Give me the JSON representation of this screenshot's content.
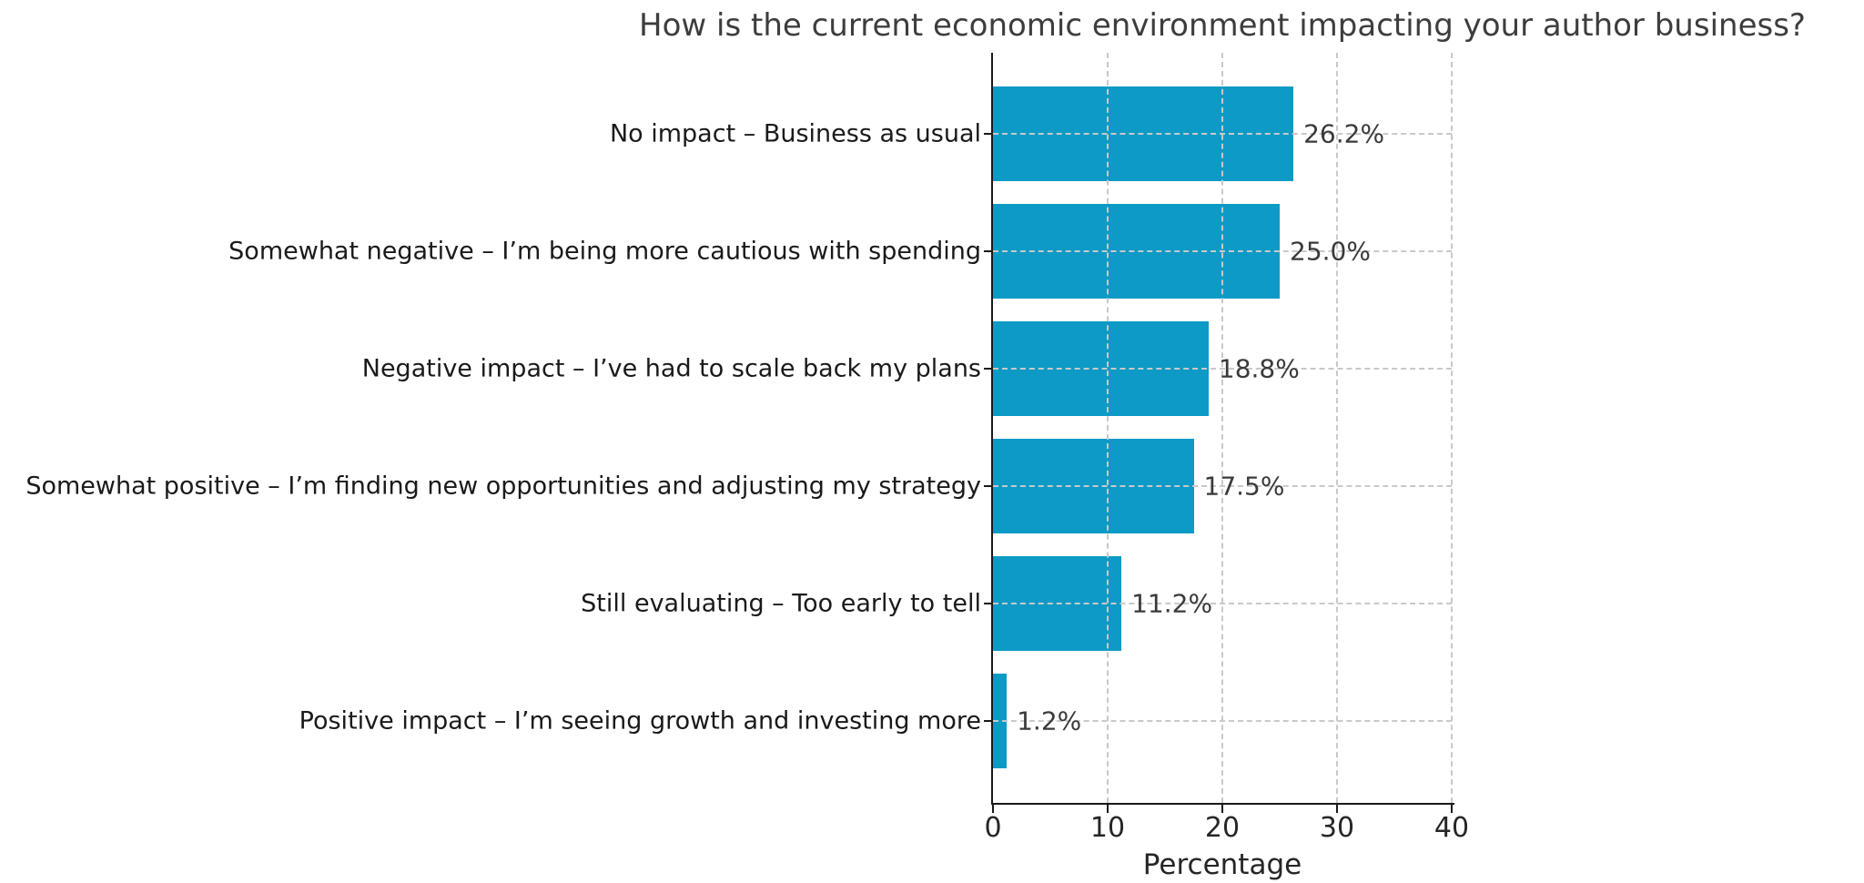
{
  "chart_data": {
    "type": "bar",
    "orientation": "horizontal",
    "title": "How is the current economic environment impacting your author business?",
    "xlabel": "Percentage",
    "ylabel": "",
    "xlim": [
      0,
      40
    ],
    "xticks": [
      0,
      10,
      20,
      30,
      40
    ],
    "grid": true,
    "grid_style": "dashed",
    "legend_position": "none",
    "bar_color": "#0d9ac6",
    "categories": [
      "No impact – Business as usual",
      "Somewhat negative – I’m being more cautious with spending",
      "Negative impact – I’ve had to scale back my plans",
      "Somewhat positive – I’m finding new opportunities and adjusting my strategy",
      "Still evaluating – Too early to tell",
      "Positive impact – I’m seeing growth and investing more"
    ],
    "values": [
      26.2,
      25.0,
      18.8,
      17.5,
      11.2,
      1.2
    ],
    "value_labels": [
      "26.2%",
      "25.0%",
      "18.8%",
      "17.5%",
      "11.2%",
      "1.2%"
    ]
  }
}
